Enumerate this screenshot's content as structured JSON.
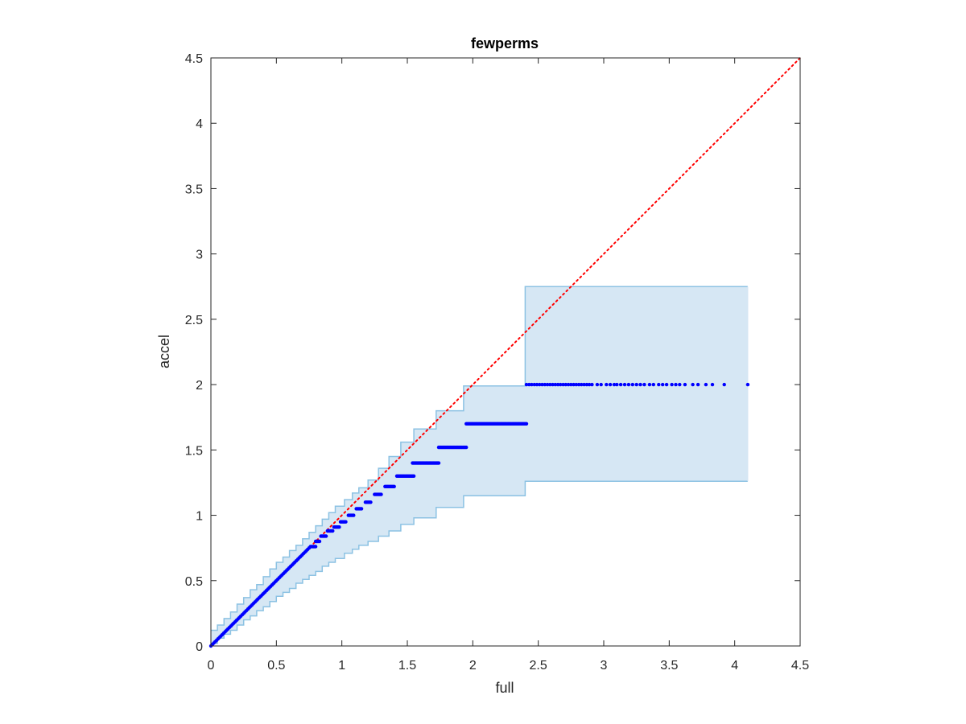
{
  "chart_data": {
    "type": "scatter",
    "title": "fewperms",
    "xlabel": "full",
    "ylabel": "accel",
    "xlim": [
      0,
      4.5
    ],
    "ylim": [
      0,
      4.5
    ],
    "xticks": [
      "0",
      "0.5",
      "1",
      "1.5",
      "2",
      "2.5",
      "3",
      "3.5",
      "4",
      "4.5"
    ],
    "yticks": [
      "0",
      "0.5",
      "1",
      "1.5",
      "2",
      "2.5",
      "3",
      "3.5",
      "4",
      "4.5"
    ],
    "grid": false,
    "box": true,
    "reference_line": {
      "x": [
        0,
        4.5
      ],
      "y": [
        0,
        4.5
      ],
      "style": "dotted",
      "color": "#ff0000"
    },
    "band": {
      "fill": "#d6e7f4",
      "stroke": "#8cc2e3",
      "steps": [
        {
          "x0": 0.0,
          "x1": 0.05,
          "lower": 0.02,
          "upper": 0.12
        },
        {
          "x0": 0.05,
          "x1": 0.1,
          "lower": 0.06,
          "upper": 0.16
        },
        {
          "x0": 0.1,
          "x1": 0.15,
          "lower": 0.09,
          "upper": 0.21
        },
        {
          "x0": 0.15,
          "x1": 0.2,
          "lower": 0.12,
          "upper": 0.26
        },
        {
          "x0": 0.2,
          "x1": 0.25,
          "lower": 0.16,
          "upper": 0.32
        },
        {
          "x0": 0.25,
          "x1": 0.3,
          "lower": 0.2,
          "upper": 0.37
        },
        {
          "x0": 0.3,
          "x1": 0.35,
          "lower": 0.23,
          "upper": 0.43
        },
        {
          "x0": 0.35,
          "x1": 0.4,
          "lower": 0.27,
          "upper": 0.47
        },
        {
          "x0": 0.4,
          "x1": 0.45,
          "lower": 0.3,
          "upper": 0.53
        },
        {
          "x0": 0.45,
          "x1": 0.5,
          "lower": 0.34,
          "upper": 0.59
        },
        {
          "x0": 0.5,
          "x1": 0.55,
          "lower": 0.38,
          "upper": 0.64
        },
        {
          "x0": 0.55,
          "x1": 0.6,
          "lower": 0.41,
          "upper": 0.68
        },
        {
          "x0": 0.6,
          "x1": 0.65,
          "lower": 0.44,
          "upper": 0.73
        },
        {
          "x0": 0.65,
          "x1": 0.7,
          "lower": 0.48,
          "upper": 0.77
        },
        {
          "x0": 0.7,
          "x1": 0.75,
          "lower": 0.51,
          "upper": 0.82
        },
        {
          "x0": 0.75,
          "x1": 0.8,
          "lower": 0.54,
          "upper": 0.87
        },
        {
          "x0": 0.8,
          "x1": 0.85,
          "lower": 0.57,
          "upper": 0.92
        },
        {
          "x0": 0.85,
          "x1": 0.9,
          "lower": 0.61,
          "upper": 0.97
        },
        {
          "x0": 0.9,
          "x1": 0.95,
          "lower": 0.64,
          "upper": 1.02
        },
        {
          "x0": 0.95,
          "x1": 1.02,
          "lower": 0.67,
          "upper": 1.07
        },
        {
          "x0": 1.02,
          "x1": 1.08,
          "lower": 0.71,
          "upper": 1.12
        },
        {
          "x0": 1.08,
          "x1": 1.13,
          "lower": 0.74,
          "upper": 1.17
        },
        {
          "x0": 1.13,
          "x1": 1.2,
          "lower": 0.77,
          "upper": 1.21
        },
        {
          "x0": 1.2,
          "x1": 1.28,
          "lower": 0.8,
          "upper": 1.27
        },
        {
          "x0": 1.28,
          "x1": 1.36,
          "lower": 0.84,
          "upper": 1.36
        },
        {
          "x0": 1.36,
          "x1": 1.45,
          "lower": 0.88,
          "upper": 1.45
        },
        {
          "x0": 1.45,
          "x1": 1.55,
          "lower": 0.93,
          "upper": 1.56
        },
        {
          "x0": 1.55,
          "x1": 1.72,
          "lower": 0.98,
          "upper": 1.66
        },
        {
          "x0": 1.72,
          "x1": 1.93,
          "lower": 1.06,
          "upper": 1.8
        },
        {
          "x0": 1.93,
          "x1": 2.4,
          "lower": 1.15,
          "upper": 1.99
        },
        {
          "x0": 2.4,
          "x1": 2.4,
          "lower": 1.15,
          "upper": 2.26
        },
        {
          "x0": 2.4,
          "x1": 4.1,
          "lower": 1.26,
          "upper": 2.75
        }
      ]
    },
    "series": [
      {
        "color": "#0000ff",
        "diagonal": {
          "x_from": 0.0,
          "x_to": 0.75,
          "count": 70
        },
        "clusters": [
          {
            "y": 0.76,
            "x_from": 0.76,
            "x_to": 0.8
          },
          {
            "y": 0.8,
            "x_from": 0.8,
            "x_to": 0.83
          },
          {
            "y": 0.84,
            "x_from": 0.84,
            "x_to": 0.88
          },
          {
            "y": 0.88,
            "x_from": 0.89,
            "x_to": 0.93
          },
          {
            "y": 0.91,
            "x_from": 0.94,
            "x_to": 0.98
          },
          {
            "y": 0.95,
            "x_from": 0.99,
            "x_to": 1.03
          },
          {
            "y": 1.0,
            "x_from": 1.05,
            "x_to": 1.09
          },
          {
            "y": 1.05,
            "x_from": 1.11,
            "x_to": 1.15
          },
          {
            "y": 1.1,
            "x_from": 1.18,
            "x_to": 1.22
          },
          {
            "y": 1.16,
            "x_from": 1.25,
            "x_to": 1.3
          },
          {
            "y": 1.22,
            "x_from": 1.33,
            "x_to": 1.4
          },
          {
            "y": 1.3,
            "x_from": 1.42,
            "x_to": 1.55
          },
          {
            "y": 1.4,
            "x_from": 1.54,
            "x_to": 1.74
          },
          {
            "y": 1.52,
            "x_from": 1.74,
            "x_to": 1.95
          },
          {
            "y": 1.7,
            "x_from": 1.95,
            "x_to": 2.41
          }
        ],
        "tail": {
          "y": 2.0,
          "x": [
            2.41,
            2.43,
            2.45,
            2.47,
            2.49,
            2.51,
            2.53,
            2.55,
            2.57,
            2.59,
            2.61,
            2.63,
            2.65,
            2.67,
            2.69,
            2.71,
            2.73,
            2.75,
            2.77,
            2.79,
            2.81,
            2.83,
            2.85,
            2.87,
            2.89,
            2.91,
            2.95,
            2.98,
            3.02,
            3.05,
            3.08,
            3.1,
            3.13,
            3.16,
            3.19,
            3.22,
            3.25,
            3.28,
            3.31,
            3.35,
            3.38,
            3.42,
            3.45,
            3.48,
            3.52,
            3.55,
            3.58,
            3.62,
            3.68,
            3.72,
            3.78,
            3.83,
            3.92,
            4.1
          ]
        }
      }
    ]
  }
}
